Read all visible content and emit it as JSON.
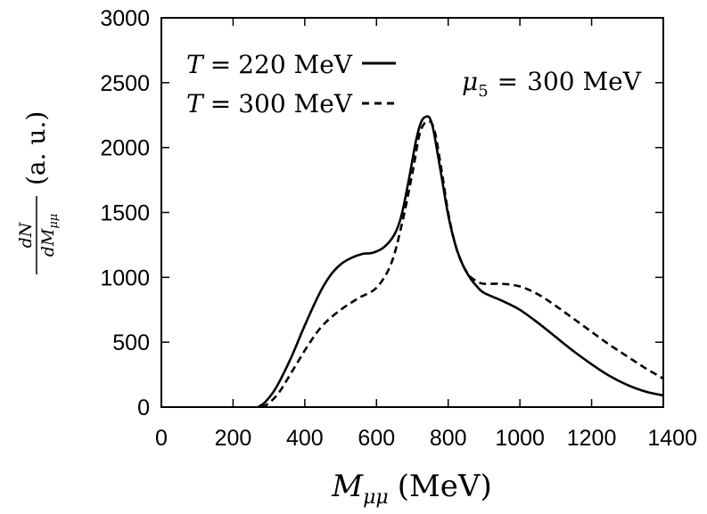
{
  "chart_data": {
    "type": "line",
    "title": "",
    "xlabel": {
      "symbol": "M",
      "subscript": "μμ",
      "unit": "(MeV)"
    },
    "ylabel": {
      "numerator": "dN",
      "denominator": "dM",
      "denominator_subscript": "μμ",
      "unit": "(a. u.)"
    },
    "xlim": [
      0,
      1400
    ],
    "ylim": [
      0,
      3000
    ],
    "xticks": [
      0,
      200,
      400,
      600,
      800,
      1000,
      1200,
      1400
    ],
    "yticks": [
      0,
      500,
      1000,
      1500,
      2000,
      2500,
      3000
    ],
    "grid": false,
    "legend_position": "top-left",
    "annotation": {
      "symbol": "μ",
      "subscript": "5",
      "equals": "=",
      "value": "300 MeV"
    },
    "series": [
      {
        "name": "T = 220 MeV",
        "legend": {
          "symbol": "T",
          "equals": "=",
          "value": "220 MeV"
        },
        "style": "solid",
        "x": [
          270,
          290,
          320,
          360,
          400,
          440,
          470,
          500,
          530,
          560,
          590,
          620,
          650,
          670,
          690,
          710,
          725,
          740,
          750,
          760,
          780,
          800,
          820,
          840,
          860,
          880,
          900,
          950,
          1000,
          1050,
          1100,
          1150,
          1200,
          1250,
          1300,
          1350,
          1400
        ],
        "y": [
          0,
          40,
          150,
          370,
          630,
          870,
          1010,
          1100,
          1150,
          1180,
          1190,
          1230,
          1330,
          1480,
          1750,
          2050,
          2200,
          2240,
          2220,
          2120,
          1800,
          1480,
          1250,
          1100,
          1000,
          930,
          880,
          820,
          750,
          650,
          540,
          430,
          330,
          240,
          170,
          120,
          90
        ]
      },
      {
        "name": "T = 300 MeV",
        "legend": {
          "symbol": "T",
          "equals": "=",
          "value": "300 MeV"
        },
        "style": "dashed",
        "x": [
          280,
          300,
          330,
          370,
          410,
          450,
          500,
          550,
          600,
          640,
          670,
          700,
          720,
          740,
          760,
          780,
          800,
          820,
          840,
          860,
          880,
          900,
          950,
          1000,
          1050,
          1100,
          1150,
          1200,
          1250,
          1300,
          1350,
          1400
        ],
        "y": [
          0,
          30,
          120,
          300,
          480,
          630,
          750,
          840,
          920,
          1100,
          1400,
          1800,
          2100,
          2200,
          2150,
          1850,
          1500,
          1250,
          1100,
          1010,
          970,
          950,
          950,
          930,
          870,
          780,
          680,
          580,
          480,
          390,
          300,
          220
        ]
      }
    ]
  }
}
